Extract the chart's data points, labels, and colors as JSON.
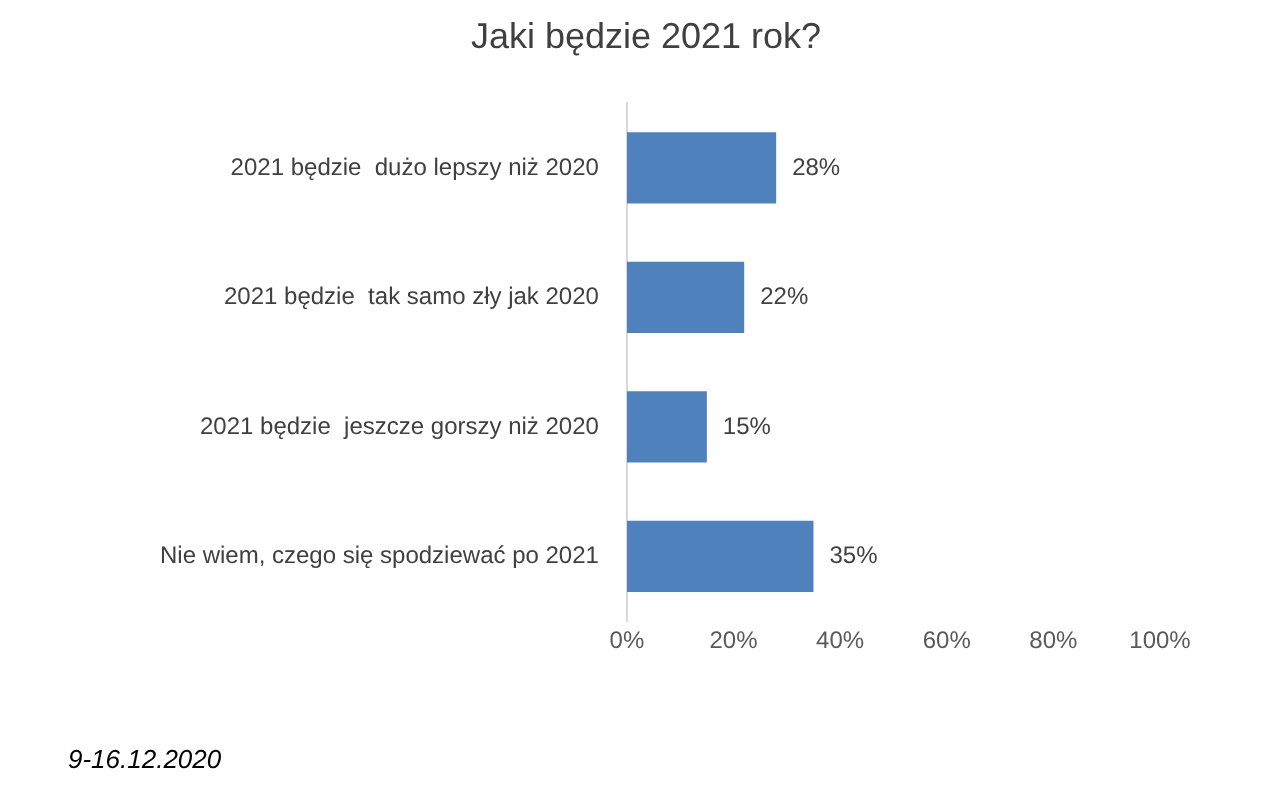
{
  "chart_data": {
    "type": "bar",
    "orientation": "horizontal",
    "title": "Jaki będzie 2021 rok?",
    "categories": [
      "2021 będzie  dużo lepszy niż 2020",
      "2021 będzie  tak samo zły jak 2020",
      "2021 będzie  jeszcze gorszy niż 2020",
      "Nie wiem, czego się spodziewać po 2021"
    ],
    "values": [
      28,
      22,
      15,
      35
    ],
    "color": "#4f81bd",
    "value_labels": [
      "28%",
      "22%",
      "15%",
      "35%"
    ],
    "xlim": [
      0,
      100
    ],
    "xticks": [
      {
        "value": 0,
        "label": "0%"
      },
      {
        "value": 20,
        "label": "20%"
      },
      {
        "value": 40,
        "label": "40%"
      },
      {
        "value": 60,
        "label": "60%"
      },
      {
        "value": 80,
        "label": "80%"
      },
      {
        "value": 100,
        "label": "100%"
      }
    ],
    "grid": false,
    "legend": false,
    "annotations": [
      "9-16.12.2020"
    ]
  }
}
